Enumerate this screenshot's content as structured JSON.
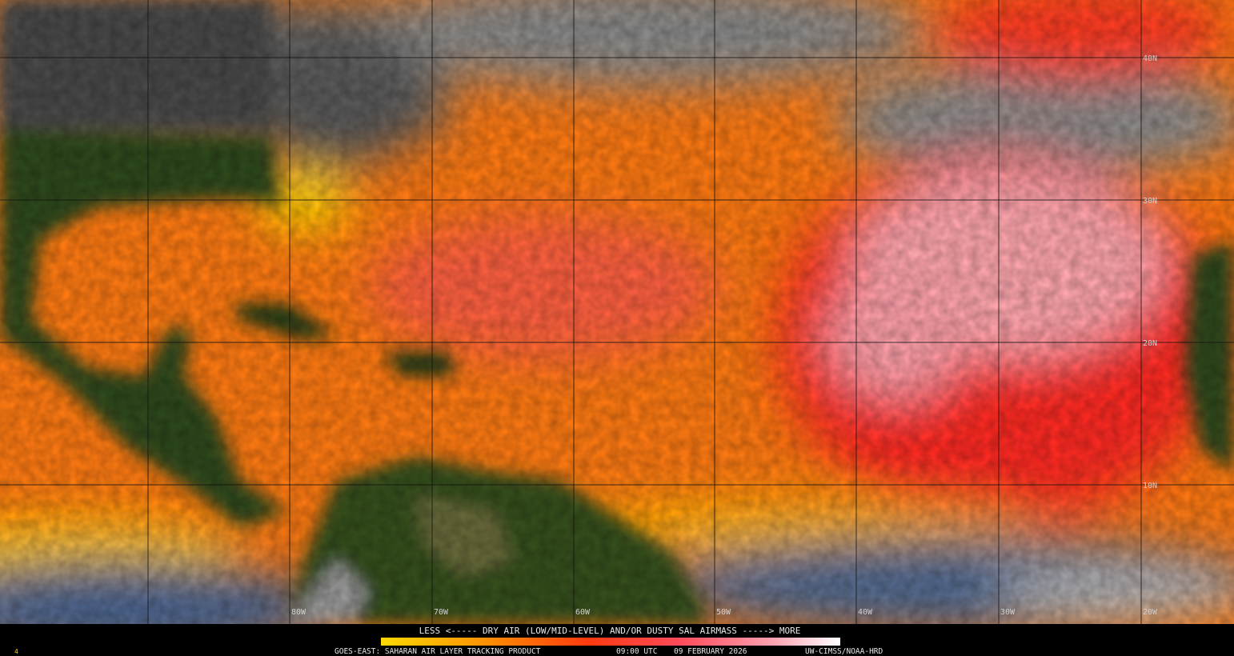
{
  "map": {
    "lat_labels": [
      "40N",
      "30N",
      "20N",
      "10N"
    ],
    "lon_labels": [
      "80W",
      "70W",
      "60W",
      "50W",
      "40W",
      "30W",
      "20W"
    ]
  },
  "legend": {
    "text": "LESS <----- DRY AIR (LOW/MID-LEVEL) AND/OR DUSTY SAL AIRMASS -----> MORE"
  },
  "footer": {
    "corner": "4",
    "product": "GOES-EAST: SAHARAN AIR LAYER TRACKING PRODUCT",
    "time": "09:00 UTC",
    "date": "09 FEBRUARY 2026",
    "credit": "UW-CIMSS/NOAA-HRD"
  }
}
